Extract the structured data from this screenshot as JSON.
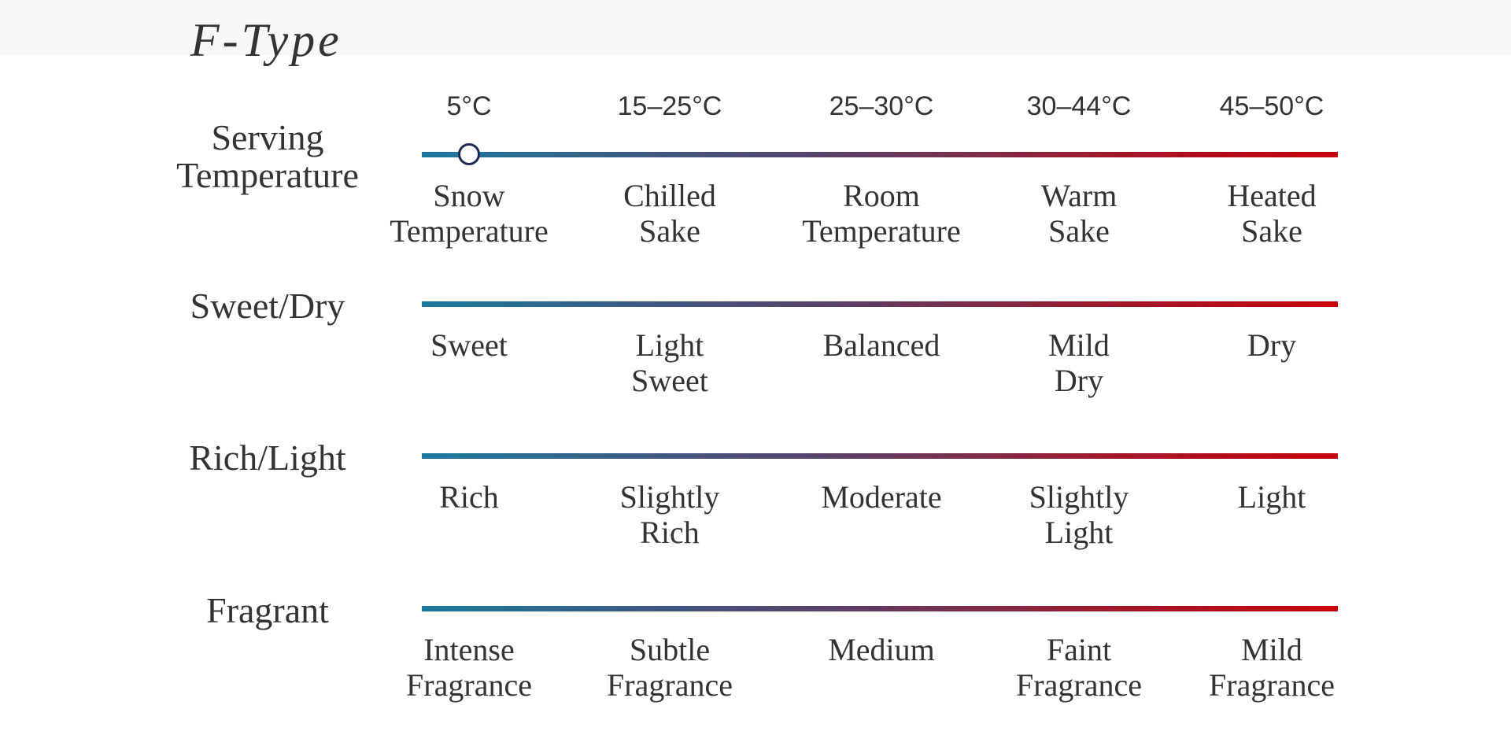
{
  "title": "F-Type",
  "scales": [
    {
      "label": "Serving\nTemperature",
      "ticks": [
        "5°C",
        "15–25°C",
        "25–30°C",
        "30–44°C",
        "45–50°C"
      ],
      "options": [
        "Snow\nTemperature",
        "Chilled\nSake",
        "Room\nTemperature",
        "Warm\nSake",
        "Heated\nSake"
      ]
    },
    {
      "label": "Sweet/Dry",
      "options": [
        "Sweet",
        "Light\nSweet",
        "Balanced",
        "Mild\nDry",
        "Dry"
      ]
    },
    {
      "label": "Rich/Light",
      "options": [
        "Rich",
        "Slightly\nRich",
        "Moderate",
        "Slightly\nLight",
        "Light"
      ]
    },
    {
      "label": "Fragrant",
      "options": [
        "Intense\nFragrance",
        "Subtle\nFragrance",
        "Medium",
        "Faint\nFragrance",
        "Mild\nFragrance"
      ]
    }
  ]
}
